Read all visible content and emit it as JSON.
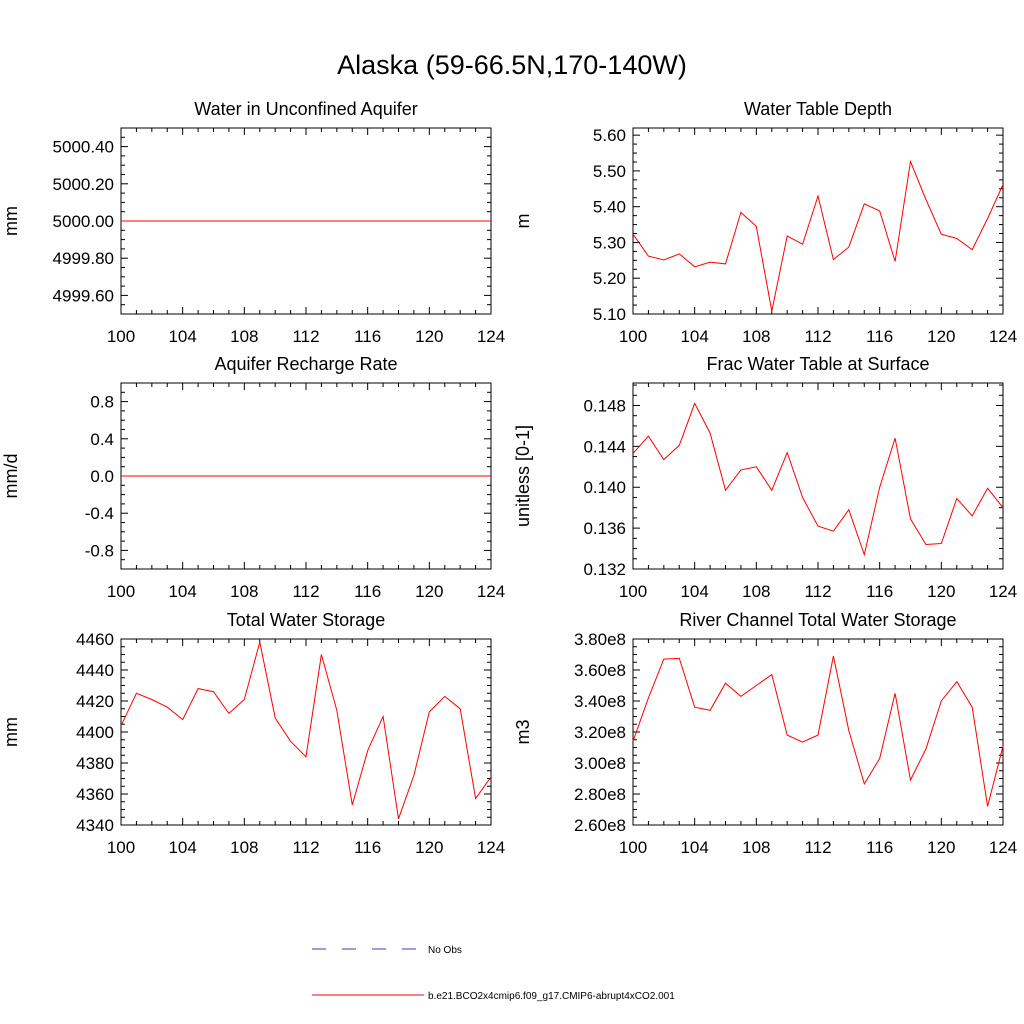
{
  "title": "Alaska (59-66.5N,170-140W)",
  "legend": [
    {
      "label": "No Obs",
      "color": "#3b3bb5",
      "style": "dashed"
    },
    {
      "label": "b.e21.BCO2x4cmip6.f09_g17.CMIP6-abrupt4xCO2.001",
      "color": "#ff0000",
      "style": "solid"
    }
  ],
  "chart_data": [
    {
      "type": "line",
      "title": "Water in Unconfined Aquifer",
      "ylabel": "mm",
      "xlim": [
        100,
        124
      ],
      "ylim": [
        4999.5,
        5000.5
      ],
      "xticks": [
        "100",
        "104",
        "108",
        "112",
        "116",
        "120",
        "124"
      ],
      "yticks": [
        "4999.60",
        "4999.80",
        "5000.00",
        "5000.20",
        "5000.40"
      ],
      "series": [
        {
          "x": [
            100,
            124
          ],
          "values": [
            5000.0,
            5000.0
          ]
        }
      ]
    },
    {
      "type": "line",
      "title": "Water Table Depth",
      "ylabel": "m",
      "xlim": [
        100,
        124
      ],
      "ylim": [
        5.1,
        5.62
      ],
      "xticks": [
        "100",
        "104",
        "108",
        "112",
        "116",
        "120",
        "124"
      ],
      "yticks": [
        "5.10",
        "5.20",
        "5.30",
        "5.40",
        "5.50",
        "5.60"
      ],
      "series": [
        {
          "x": [
            100,
            101,
            102,
            103,
            104,
            105,
            106,
            107,
            108,
            109,
            110,
            111,
            112,
            113,
            114,
            115,
            116,
            117,
            118,
            119,
            120,
            121,
            122,
            123,
            124
          ],
          "values": [
            5.323,
            5.262,
            5.251,
            5.268,
            5.232,
            5.245,
            5.24,
            5.384,
            5.345,
            5.108,
            5.318,
            5.295,
            5.43,
            5.252,
            5.287,
            5.408,
            5.388,
            5.247,
            5.526,
            5.42,
            5.323,
            5.311,
            5.28,
            5.367,
            5.462
          ]
        }
      ]
    },
    {
      "type": "line",
      "title": "Aquifer Recharge Rate",
      "ylabel": "mm/d",
      "xlim": [
        100,
        124
      ],
      "ylim": [
        -1,
        1
      ],
      "xticks": [
        "100",
        "104",
        "108",
        "112",
        "116",
        "120",
        "124"
      ],
      "yticks": [
        "-0.8",
        "-0.4",
        "0.0",
        "0.4",
        "0.8"
      ],
      "series": [
        {
          "x": [
            100,
            124
          ],
          "values": [
            0.0,
            0.0
          ]
        }
      ]
    },
    {
      "type": "line",
      "title": "Frac Water Table at Surface",
      "ylabel": "unitless [0-1]",
      "xlim": [
        100,
        124
      ],
      "ylim": [
        0.132,
        0.1502
      ],
      "xticks": [
        "100",
        "104",
        "108",
        "112",
        "116",
        "120",
        "124"
      ],
      "yticks": [
        "0.132",
        "0.136",
        "0.140",
        "0.144",
        "0.148"
      ],
      "series": [
        {
          "x": [
            100,
            101,
            102,
            103,
            104,
            105,
            106,
            107,
            108,
            109,
            110,
            111,
            112,
            113,
            114,
            115,
            116,
            117,
            118,
            119,
            120,
            121,
            122,
            123,
            124
          ],
          "values": [
            0.1433,
            0.145,
            0.1427,
            0.1441,
            0.1482,
            0.1453,
            0.1397,
            0.1417,
            0.142,
            0.1397,
            0.1434,
            0.139,
            0.1362,
            0.1357,
            0.1378,
            0.1334,
            0.14,
            0.1448,
            0.1369,
            0.1344,
            0.1345,
            0.1389,
            0.1372,
            0.1399,
            0.138
          ]
        }
      ]
    },
    {
      "type": "line",
      "title": "Total Water Storage",
      "ylabel": "mm",
      "xlim": [
        100,
        124
      ],
      "ylim": [
        4340,
        4460
      ],
      "xticks": [
        "100",
        "104",
        "108",
        "112",
        "116",
        "120",
        "124"
      ],
      "yticks": [
        "4340",
        "4360",
        "4380",
        "4400",
        "4420",
        "4440",
        "4460"
      ],
      "series": [
        {
          "x": [
            100,
            101,
            102,
            103,
            104,
            105,
            106,
            107,
            108,
            109,
            110,
            111,
            112,
            113,
            114,
            115,
            116,
            117,
            118,
            119,
            120,
            121,
            122,
            123,
            124
          ],
          "values": [
            4404,
            4425,
            4421,
            4416,
            4408,
            4428,
            4426,
            4412,
            4421,
            4458,
            4409,
            4394,
            4384,
            4450,
            4414,
            4353,
            4388,
            4410,
            4344,
            4372,
            4413,
            4423,
            4415,
            4357,
            4371
          ]
        }
      ]
    },
    {
      "type": "line",
      "title": "River Channel Total Water Storage",
      "ylabel": "m3",
      "xlim": [
        100,
        124
      ],
      "ylim": [
        260000000.0,
        380000000.0
      ],
      "xticks": [
        "100",
        "104",
        "108",
        "112",
        "116",
        "120",
        "124"
      ],
      "yticks": [
        "2.60e8",
        "2.80e8",
        "3.00e8",
        "3.20e8",
        "3.40e8",
        "3.60e8",
        "3.80e8"
      ],
      "series": [
        {
          "x": [
            100,
            101,
            102,
            103,
            104,
            105,
            106,
            107,
            108,
            109,
            110,
            111,
            112,
            113,
            114,
            115,
            116,
            117,
            118,
            119,
            120,
            121,
            122,
            123,
            124
          ],
          "values": [
            314000000.0,
            342000000.0,
            367000000.0,
            367500000.0,
            336000000.0,
            334000000.0,
            351500000.0,
            343000000.0,
            350000000.0,
            357000000.0,
            318000000.0,
            313500000.0,
            318000000.0,
            369000000.0,
            321000000.0,
            286500000.0,
            303000000.0,
            345000000.0,
            289000000.0,
            309000000.0,
            340000000.0,
            352500000.0,
            336000000.0,
            272000000.0,
            311000000.0
          ]
        }
      ]
    }
  ]
}
